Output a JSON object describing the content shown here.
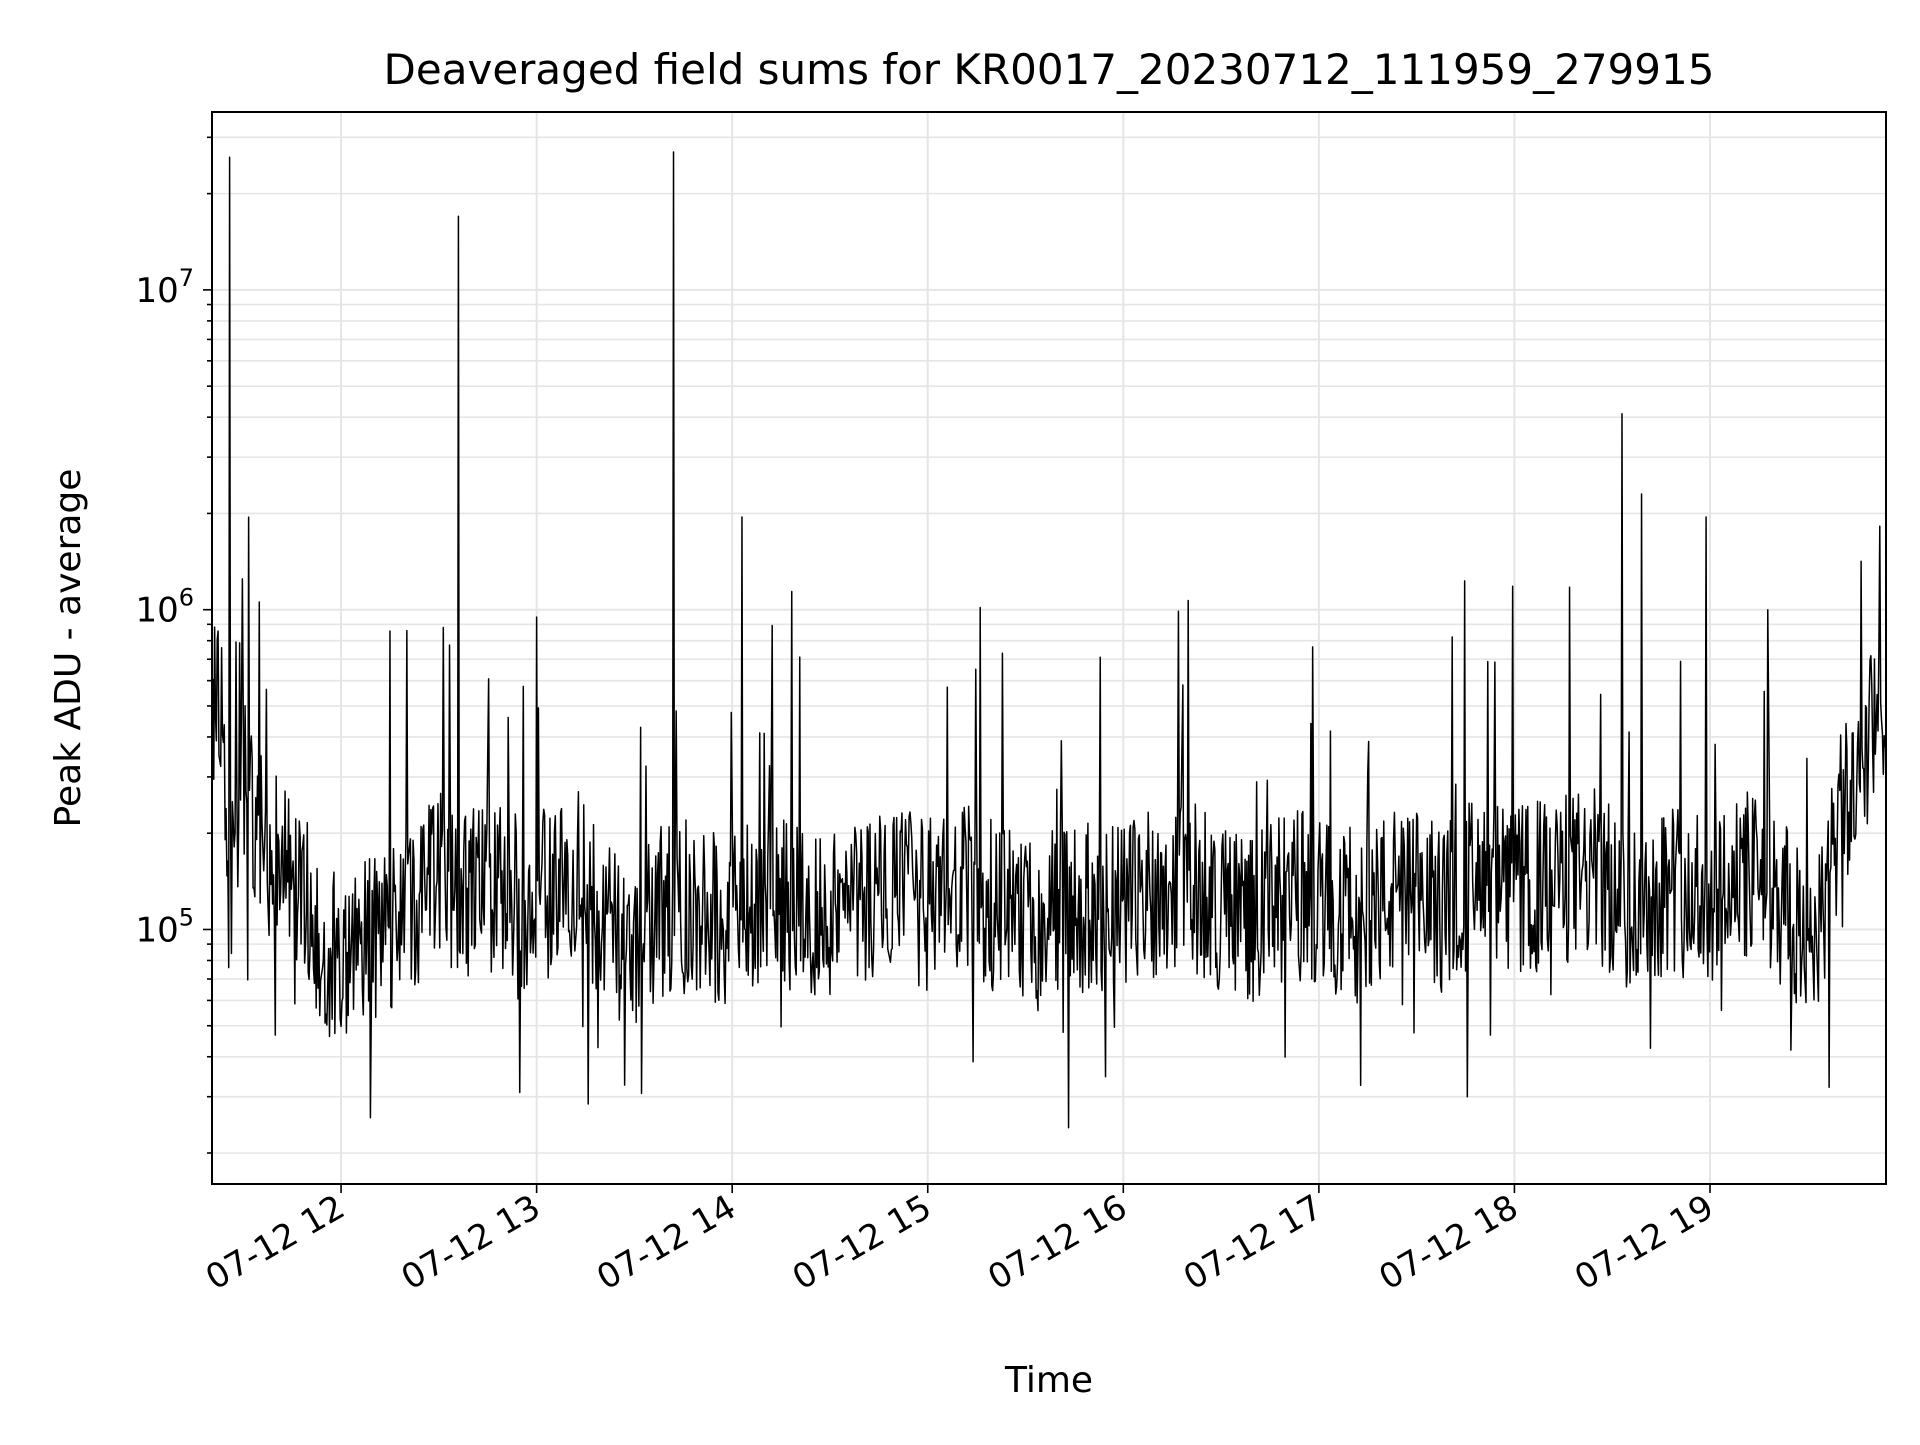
{
  "chart_data": {
    "type": "line",
    "title": "Deaveraged field sums for KR0017_20230712_111959_279915",
    "xlabel": "Time",
    "ylabel": "Peak ADU - average",
    "x_tick_labels": [
      "07-12 12",
      "07-12 13",
      "07-12 14",
      "07-12 15",
      "07-12 16",
      "07-12 17",
      "07-12 18",
      "07-12 19"
    ],
    "x_ticks_hours": [
      12,
      13,
      14,
      15,
      16,
      17,
      18,
      19
    ],
    "y_tick_labels": [
      {
        "base": "10",
        "exp": "5",
        "value": 100000
      },
      {
        "base": "10",
        "exp": "6",
        "value": 1000000
      },
      {
        "base": "10",
        "exp": "7",
        "value": 10000000
      }
    ],
    "yscale": "log",
    "xlim_hours": [
      11.34,
      19.9
    ],
    "ylim": [
      16000,
      36000000
    ],
    "grid": true,
    "line_color": "#000000",
    "grid_color": "#e5e5e5",
    "series": [
      {
        "x_hours": [
          11.34,
          11.38,
          11.43,
          11.5,
          11.6,
          11.75,
          11.9,
          12.05,
          12.2,
          12.35,
          12.5,
          12.6,
          12.75,
          12.9,
          13.05,
          13.2,
          13.35,
          13.5,
          13.6,
          13.7,
          13.85,
          14.0,
          14.05,
          14.2,
          14.4,
          14.6,
          14.8,
          15.0,
          15.2,
          15.4,
          15.6,
          15.72,
          15.9,
          16.1,
          16.3,
          16.5,
          16.7,
          16.9,
          17.0,
          17.2,
          17.4,
          17.6,
          17.8,
          18.0,
          18.2,
          18.4,
          18.55,
          18.65,
          18.8,
          18.98,
          19.1,
          19.3,
          19.45,
          19.55,
          19.65,
          19.75,
          19.85,
          19.9
        ],
        "values": [
          450000,
          600000,
          26000000,
          300000,
          180000,
          150000,
          90000,
          80000,
          100000,
          110000,
          150000,
          17000000,
          140000,
          120000,
          130000,
          150000,
          100000,
          90000,
          110000,
          27000000,
          120000,
          100000,
          1950000,
          130000,
          110000,
          120000,
          130000,
          120000,
          130000,
          110000,
          100000,
          24000,
          110000,
          130000,
          140000,
          120000,
          110000,
          130000,
          120000,
          110000,
          130000,
          120000,
          140000,
          130000,
          140000,
          150000,
          4100000,
          2300000,
          140000,
          1950000,
          150000,
          140000,
          100000,
          90000,
          200000,
          300000,
          450000,
          400000
        ]
      }
    ]
  }
}
